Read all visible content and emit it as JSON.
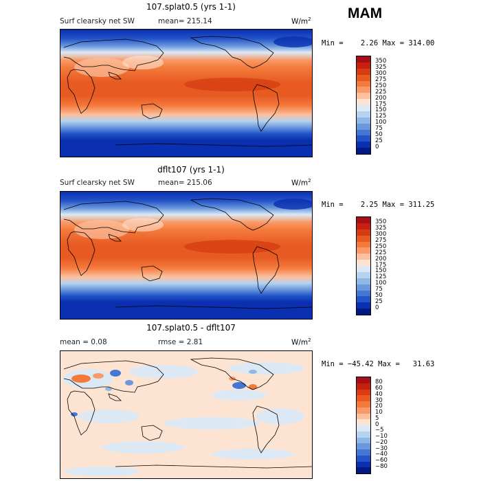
{
  "season": "MAM",
  "units_base": "W/m",
  "units_exp": "2",
  "panels": [
    {
      "title": "107.splat0.5 (yrs 1-1)",
      "field": "Surf clearsky net SW",
      "mean": "mean= 215.14",
      "minmax": "Min =    2.26 Max = 314.00",
      "levels": [
        "350",
        "325",
        "300",
        "275",
        "250",
        "225",
        "200",
        "175",
        "150",
        "125",
        "100",
        "75",
        "50",
        "25",
        "0"
      ],
      "colors": [
        "#a50f15",
        "#c8200e",
        "#d63c12",
        "#e75a22",
        "#f47a3c",
        "#f99a68",
        "#fcc09e",
        "#fde4d2",
        "#dbe9f6",
        "#b5d2ee",
        "#90b8e6",
        "#6a98dd",
        "#4477d3",
        "#2253c8",
        "#0a2fb0",
        "#001a80"
      ]
    },
    {
      "title": "dflt107 (yrs 1-1)",
      "field": "Surf clearsky net SW",
      "mean": "mean= 215.06",
      "minmax": "Min =    2.25 Max = 311.25",
      "levels": [
        "350",
        "325",
        "300",
        "275",
        "250",
        "225",
        "200",
        "175",
        "150",
        "125",
        "100",
        "75",
        "50",
        "25",
        "0"
      ],
      "colors": [
        "#a50f15",
        "#c8200e",
        "#d63c12",
        "#e75a22",
        "#f47a3c",
        "#f99a68",
        "#fcc09e",
        "#fde4d2",
        "#dbe9f6",
        "#b5d2ee",
        "#90b8e6",
        "#6a98dd",
        "#4477d3",
        "#2253c8",
        "#0a2fb0",
        "#001a80"
      ]
    },
    {
      "title": "107.splat0.5 - dflt107",
      "mean": "mean =    0.08",
      "rmse": "rmse =    2.81",
      "minmax": "Min = −45.42 Max =   31.63",
      "levels": [
        "80",
        "60",
        "40",
        "30",
        "20",
        "10",
        "5",
        "0",
        "−5",
        "−10",
        "−20",
        "−30",
        "−40",
        "−60",
        "−80"
      ],
      "colors": [
        "#a50f15",
        "#c8200e",
        "#dc3c12",
        "#ec5a22",
        "#f47a3c",
        "#f99a68",
        "#fcc09e",
        "#fde4d2",
        "#dbe9f6",
        "#b5d2ee",
        "#90b8e6",
        "#6a98dd",
        "#4477d3",
        "#2253c8",
        "#0a2fb0",
        "#001a80"
      ]
    }
  ]
}
